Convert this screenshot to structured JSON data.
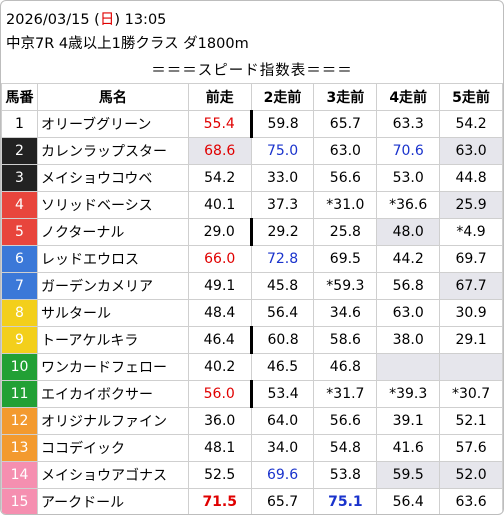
{
  "header": {
    "date": "2026/03/15 (",
    "weekday": "日",
    "time": ") 13:05",
    "race": "中京7R 4歳以上1勝クラス ダ1800m"
  },
  "speed_title": "＝＝＝スピード指数表＝＝＝",
  "columns": [
    "馬番",
    "馬名",
    "前走",
    "2走前",
    "3走前",
    "4走前",
    "5走前"
  ],
  "rows": [
    {
      "num": "1",
      "name": "オリーブグリーン",
      "color": "c1",
      "cells": [
        {
          "v": "55.4",
          "s": "red",
          "rb": true
        },
        {
          "v": "59.8"
        },
        {
          "v": "65.7"
        },
        {
          "v": "63.3"
        },
        {
          "v": "54.2"
        }
      ]
    },
    {
      "num": "2",
      "name": "カレンラップスター",
      "color": "c2",
      "cells": [
        {
          "v": "68.6",
          "s": "red gray"
        },
        {
          "v": "75.0",
          "s": "blue"
        },
        {
          "v": "63.0"
        },
        {
          "v": "70.6",
          "s": "blue"
        },
        {
          "v": "63.0",
          "s": "gray"
        }
      ]
    },
    {
      "num": "3",
      "name": "メイショウコウベ",
      "color": "c2",
      "cells": [
        {
          "v": "54.2"
        },
        {
          "v": "33.0"
        },
        {
          "v": "56.6"
        },
        {
          "v": "53.0"
        },
        {
          "v": "44.8"
        }
      ]
    },
    {
      "num": "4",
      "name": "ソリッドベーシス",
      "color": "c3",
      "cells": [
        {
          "v": "40.1"
        },
        {
          "v": "37.3"
        },
        {
          "v": "*31.0"
        },
        {
          "v": "*36.6"
        },
        {
          "v": "25.9",
          "s": "gray"
        }
      ]
    },
    {
      "num": "5",
      "name": "ノクターナル",
      "color": "c3",
      "cells": [
        {
          "v": "29.0",
          "rb": true
        },
        {
          "v": "29.2"
        },
        {
          "v": "25.8"
        },
        {
          "v": "48.0",
          "s": "gray"
        },
        {
          "v": "*4.9"
        }
      ]
    },
    {
      "num": "6",
      "name": "レッドエウロス",
      "color": "c4",
      "cells": [
        {
          "v": "66.0",
          "s": "red"
        },
        {
          "v": "72.8",
          "s": "blue"
        },
        {
          "v": "69.5"
        },
        {
          "v": "44.2"
        },
        {
          "v": "69.7"
        }
      ]
    },
    {
      "num": "7",
      "name": "ガーデンカメリア",
      "color": "c4",
      "cells": [
        {
          "v": "49.1"
        },
        {
          "v": "45.8"
        },
        {
          "v": "*59.3"
        },
        {
          "v": "56.8"
        },
        {
          "v": "67.7",
          "s": "gray"
        }
      ]
    },
    {
      "num": "8",
      "name": "サルタール",
      "color": "c5",
      "cells": [
        {
          "v": "48.4"
        },
        {
          "v": "56.4"
        },
        {
          "v": "34.6"
        },
        {
          "v": "63.0"
        },
        {
          "v": "30.9"
        }
      ]
    },
    {
      "num": "9",
      "name": "トーアケルキラ",
      "color": "c5",
      "cells": [
        {
          "v": "46.4",
          "rb": true
        },
        {
          "v": "60.8"
        },
        {
          "v": "58.6"
        },
        {
          "v": "38.0"
        },
        {
          "v": "29.1"
        }
      ]
    },
    {
      "num": "10",
      "name": "ワンカードフェロー",
      "color": "c6",
      "cells": [
        {
          "v": "40.2"
        },
        {
          "v": "46.5"
        },
        {
          "v": "46.8"
        },
        {
          "v": "",
          "s": "gray"
        },
        {
          "v": "",
          "s": "gray"
        }
      ]
    },
    {
      "num": "11",
      "name": "エイカイボクサー",
      "color": "c6",
      "cells": [
        {
          "v": "56.0",
          "s": "red",
          "rb": true
        },
        {
          "v": "53.4"
        },
        {
          "v": "*31.7"
        },
        {
          "v": "*39.3"
        },
        {
          "v": "*30.7"
        }
      ]
    },
    {
      "num": "12",
      "name": "オリジナルファイン",
      "color": "c7",
      "cells": [
        {
          "v": "36.0"
        },
        {
          "v": "64.0"
        },
        {
          "v": "56.6"
        },
        {
          "v": "39.1"
        },
        {
          "v": "52.1"
        }
      ]
    },
    {
      "num": "13",
      "name": "ココデイック",
      "color": "c7",
      "cells": [
        {
          "v": "48.1"
        },
        {
          "v": "34.0"
        },
        {
          "v": "54.8"
        },
        {
          "v": "41.6"
        },
        {
          "v": "57.6"
        }
      ]
    },
    {
      "num": "14",
      "name": "メイショウアゴナス",
      "color": "c8",
      "cells": [
        {
          "v": "52.5"
        },
        {
          "v": "69.6",
          "s": "blue"
        },
        {
          "v": "53.8"
        },
        {
          "v": "59.5",
          "s": "gray"
        },
        {
          "v": "52.0",
          "s": "gray"
        }
      ]
    },
    {
      "num": "15",
      "name": "アークドール",
      "color": "c8",
      "cells": [
        {
          "v": "71.5",
          "s": "red bold"
        },
        {
          "v": "65.7"
        },
        {
          "v": "75.1",
          "s": "blue bold"
        },
        {
          "v": "56.4"
        },
        {
          "v": "63.6"
        }
      ]
    }
  ]
}
